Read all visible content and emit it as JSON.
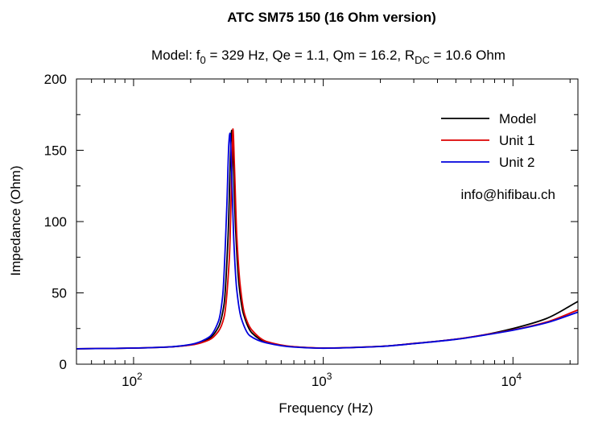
{
  "chart_data": {
    "type": "line",
    "title": "ATC SM75 150 (16 Ohm version)",
    "subtitle": {
      "p1": "Model: f",
      "s1": "0",
      "p2": " = 329 Hz, Qe = 1.1, Qm = 16.2, R",
      "s2": "DC",
      "p3": " = 10.6 Ohm"
    },
    "xlabel": "Frequency (Hz)",
    "ylabel": "Impedance (Ohm)",
    "xscale": "log",
    "xlim": [
      50,
      22000
    ],
    "ylim": [
      0,
      200
    ],
    "y_ticks": [
      0,
      50,
      100,
      150,
      200
    ],
    "x_ticks": [
      {
        "value": 100,
        "base": "10",
        "exp": "2"
      },
      {
        "value": 1000,
        "base": "10",
        "exp": "3"
      },
      {
        "value": 10000,
        "base": "10",
        "exp": "4"
      }
    ],
    "legend_position": "top-right",
    "series": [
      {
        "name": "Model",
        "color": "#000000",
        "x": [
          50,
          80,
          100,
          150,
          200,
          250,
          280,
          300,
          315,
          325,
          329,
          335,
          345,
          360,
          380,
          420,
          500,
          700,
          1000,
          2000,
          3000,
          5000,
          7000,
          10000,
          15000,
          22000
        ],
        "y": [
          10.8,
          11.1,
          11.3,
          12.0,
          13.6,
          18.0,
          26.0,
          42.0,
          90.0,
          150.0,
          164.0,
          145.0,
          95.0,
          55.0,
          35.0,
          22.0,
          15.5,
          12.2,
          11.3,
          12.5,
          14.5,
          17.5,
          20.5,
          25.0,
          32.0,
          44.0
        ]
      },
      {
        "name": "Unit 1",
        "color": "#dd0000",
        "x": [
          50,
          80,
          100,
          150,
          200,
          250,
          280,
          300,
          320,
          330,
          334,
          340,
          350,
          365,
          385,
          420,
          500,
          700,
          1000,
          2000,
          3000,
          5000,
          7000,
          10000,
          15000,
          22000
        ],
        "y": [
          10.8,
          11.1,
          11.3,
          12.0,
          13.4,
          17.0,
          23.0,
          33.0,
          75.0,
          140.0,
          165.0,
          140.0,
          90.0,
          55.0,
          35.0,
          24.0,
          16.0,
          12.3,
          11.3,
          12.5,
          14.5,
          17.5,
          20.5,
          24.0,
          29.5,
          38.0
        ]
      },
      {
        "name": "Unit 2",
        "color": "#0000dd",
        "x": [
          50,
          80,
          100,
          150,
          200,
          250,
          280,
          295,
          310,
          318,
          322,
          328,
          338,
          350,
          370,
          410,
          500,
          700,
          1000,
          2000,
          3000,
          5000,
          7000,
          10000,
          15000,
          22000
        ],
        "y": [
          10.8,
          11.1,
          11.3,
          12.0,
          13.8,
          19.0,
          30.0,
          48.0,
          110.0,
          155.0,
          162.0,
          140.0,
          85.0,
          52.0,
          32.0,
          20.0,
          15.0,
          12.0,
          11.2,
          12.4,
          14.4,
          17.4,
          20.3,
          23.8,
          29.0,
          36.5
        ]
      }
    ],
    "annotation": "info@hifibau.ch"
  }
}
